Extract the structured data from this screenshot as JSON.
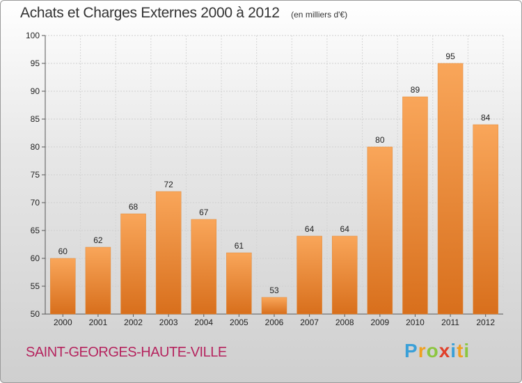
{
  "chart_data": {
    "type": "bar",
    "title": "Achats et Charges Externes 2000 à 2012",
    "unit": "(en milliers d'€)",
    "categories": [
      "2000",
      "2001",
      "2002",
      "2003",
      "2004",
      "2005",
      "2006",
      "2007",
      "2008",
      "2009",
      "2010",
      "2011",
      "2012"
    ],
    "values": [
      60,
      62,
      68,
      72,
      67,
      61,
      53,
      64,
      64,
      80,
      89,
      95,
      84
    ],
    "ylim": [
      50,
      100
    ],
    "yticks": [
      50,
      55,
      60,
      65,
      70,
      75,
      80,
      85,
      90,
      95,
      100
    ],
    "xlabel": "",
    "ylabel": "",
    "grid": true,
    "legend": "none",
    "bar_color_top": "#f9a65a",
    "bar_color_bottom": "#d86f1c"
  },
  "footer": {
    "commune": "SAINT-GEORGES-HAUTE-VILLE",
    "logo_letters": [
      {
        "ch": "P",
        "color": "#3aa0d8"
      },
      {
        "ch": "r",
        "color": "#f0a020"
      },
      {
        "ch": "o",
        "color": "#8cc63f"
      },
      {
        "ch": "x",
        "color": "#e0402a"
      },
      {
        "ch": "i",
        "color": "#3aa0d8"
      },
      {
        "ch": "t",
        "color": "#f0a020"
      },
      {
        "ch": "i",
        "color": "#8cc63f"
      }
    ],
    "commune_color": "#b5245e"
  }
}
